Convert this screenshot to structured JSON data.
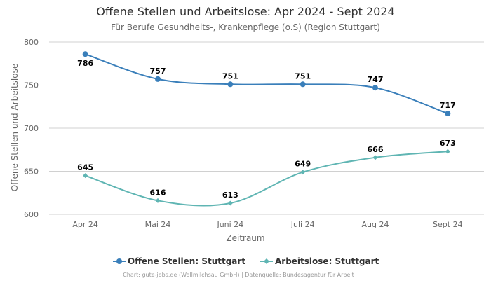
{
  "chart_data": {
    "type": "line",
    "title": "Offene Stellen und Arbeitslose: Apr 2024 - Sept 2024",
    "subtitle": "Für Berufe Gesundheits-, Krankenpflege (o.S) (Region Stuttgart)",
    "xlabel": "Zeitraum",
    "ylabel": "Offene Stellen und Arbeitslose",
    "categories": [
      "Apr 24",
      "Mai 24",
      "Juni 24",
      "Juli 24",
      "Aug 24",
      "Sept 24"
    ],
    "ylim": [
      600,
      800
    ],
    "yticks": [
      600,
      650,
      700,
      750,
      800
    ],
    "grid": true,
    "legend_position": "bottom",
    "series": [
      {
        "name": "Offene Stellen: Stuttgart",
        "values": [
          786,
          757,
          751,
          751,
          747,
          717
        ],
        "color": "#3a7fba",
        "marker": "circle",
        "label_position": [
          "below",
          "above",
          "above",
          "above",
          "above",
          "above"
        ]
      },
      {
        "name": "Arbeitslose: Stuttgart",
        "values": [
          645,
          616,
          613,
          649,
          666,
          673
        ],
        "color": "#5fb5b3",
        "marker": "diamond",
        "label_position": [
          "above",
          "above",
          "above",
          "above",
          "above",
          "above"
        ]
      }
    ],
    "credits": "Chart: gute-jobs.de (Wollmilchsau GmbH) | Datenquelle: Bundesagentur für Arbeit"
  }
}
